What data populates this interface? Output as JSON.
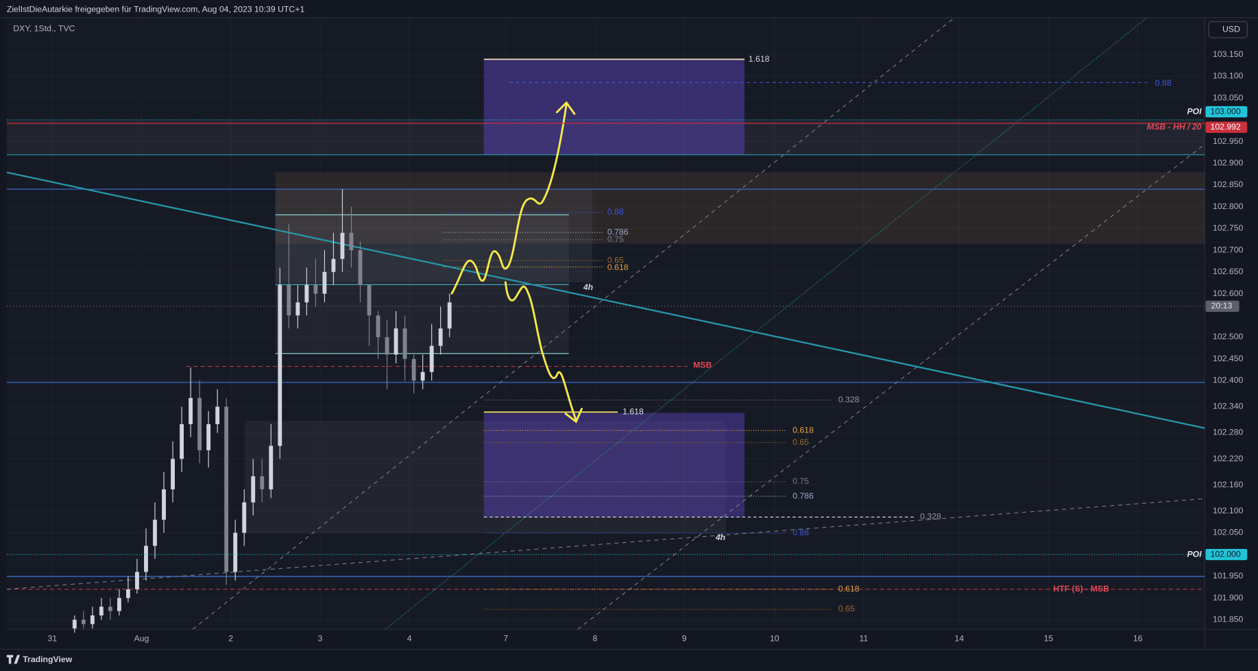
{
  "header": {
    "title": "ZielIstDieAutarkie freigegeben für TradingView.com, Aug 04, 2023 10:39 UTC+1",
    "symbol": "DXY, 1Std., TVC",
    "currency": "USD",
    "logo": "TradingView"
  },
  "chart_data": {
    "type": "candlestick",
    "x": [
      0.25,
      0.35,
      0.45,
      0.55,
      0.65,
      0.75,
      0.85,
      0.95,
      1.05,
      1.15,
      1.25,
      1.35,
      1.45,
      1.55,
      1.65,
      1.75,
      1.85,
      1.95,
      2.05,
      2.15,
      2.25,
      2.35,
      2.45,
      2.55,
      2.65,
      2.75,
      2.85,
      2.95,
      3.05,
      3.15,
      3.25,
      3.35,
      3.45,
      3.55,
      3.65,
      3.75,
      3.85,
      3.95,
      4.05,
      4.15,
      4.25,
      4.35,
      4.45
    ],
    "open": [
      101.83,
      101.85,
      101.84,
      101.86,
      101.88,
      101.87,
      101.9,
      101.92,
      101.96,
      102.02,
      102.08,
      102.15,
      102.22,
      102.3,
      102.36,
      102.24,
      102.3,
      102.34,
      101.96,
      102.05,
      102.12,
      102.18,
      102.15,
      102.25,
      102.62,
      102.55,
      102.58,
      102.62,
      102.6,
      102.65,
      102.68,
      102.74,
      102.7,
      102.62,
      102.55,
      102.5,
      102.46,
      102.52,
      102.45,
      102.4,
      102.42,
      102.48,
      102.52
    ],
    "high": [
      101.86,
      101.87,
      101.88,
      101.9,
      101.9,
      101.92,
      101.95,
      101.99,
      102.06,
      102.12,
      102.19,
      102.26,
      102.34,
      102.43,
      102.4,
      102.33,
      102.38,
      102.36,
      102.08,
      102.15,
      102.22,
      102.22,
      102.3,
      102.66,
      102.76,
      102.62,
      102.66,
      102.68,
      102.7,
      102.74,
      102.84,
      102.8,
      102.72,
      102.62,
      102.56,
      102.54,
      102.56,
      102.55,
      102.46,
      102.46,
      102.53,
      102.57,
      102.6
    ],
    "low": [
      101.82,
      101.83,
      101.83,
      101.85,
      101.85,
      101.86,
      101.89,
      101.91,
      101.94,
      101.99,
      102.05,
      102.12,
      102.19,
      102.27,
      102.21,
      102.2,
      102.28,
      101.93,
      101.94,
      102.02,
      102.09,
      102.12,
      102.13,
      102.22,
      102.52,
      102.52,
      102.55,
      102.57,
      102.58,
      102.62,
      102.65,
      102.66,
      102.58,
      102.48,
      102.45,
      102.38,
      102.44,
      102.4,
      102.37,
      102.38,
      102.4,
      102.46,
      102.5
    ],
    "close": [
      101.85,
      101.84,
      101.86,
      101.88,
      101.87,
      101.9,
      101.92,
      101.96,
      102.02,
      102.08,
      102.15,
      102.22,
      102.3,
      102.36,
      102.24,
      102.3,
      102.34,
      101.96,
      102.05,
      102.12,
      102.18,
      102.15,
      102.25,
      102.62,
      102.55,
      102.58,
      102.62,
      102.6,
      102.65,
      102.68,
      102.74,
      102.7,
      102.62,
      102.55,
      102.5,
      102.46,
      102.52,
      102.45,
      102.4,
      102.42,
      102.48,
      102.52,
      102.58
    ],
    "up_color": "#d1d4dc",
    "down_color": "#80838f",
    "xlim": [
      -0.51,
      12.91
    ],
    "ylim": [
      101.828,
      103.235
    ],
    "xticks": [
      {
        "value": 0,
        "label": "31"
      },
      {
        "value": 1,
        "label": "Aug"
      },
      {
        "value": 2,
        "label": "2"
      },
      {
        "value": 3,
        "label": "3"
      },
      {
        "value": 4,
        "label": "4"
      },
      {
        "value": 5.08,
        "label": "7"
      },
      {
        "value": 6.08,
        "label": "8"
      },
      {
        "value": 7.08,
        "label": "9"
      },
      {
        "value": 8.09,
        "label": "10"
      },
      {
        "value": 9.09,
        "label": "11"
      },
      {
        "value": 10.16,
        "label": "14"
      },
      {
        "value": 11.16,
        "label": "15"
      },
      {
        "value": 12.16,
        "label": "16"
      }
    ],
    "yticks": [
      {
        "value": 103.15,
        "label": "103.150"
      },
      {
        "value": 103.1,
        "label": "103.100"
      },
      {
        "value": 103.05,
        "label": "103.050"
      },
      {
        "value": 102.95,
        "label": "102.950"
      },
      {
        "value": 102.9,
        "label": "102.900"
      },
      {
        "value": 102.85,
        "label": "102.850"
      },
      {
        "value": 102.8,
        "label": "102.800"
      },
      {
        "value": 102.75,
        "label": "102.750"
      },
      {
        "value": 102.7,
        "label": "102.700"
      },
      {
        "value": 102.65,
        "label": "102.650"
      },
      {
        "value": 102.6,
        "label": "102.600"
      },
      {
        "value": 102.5,
        "label": "102.500"
      },
      {
        "value": 102.45,
        "label": "102.450"
      },
      {
        "value": 102.4,
        "label": "102.400"
      },
      {
        "value": 102.34,
        "label": "102.340"
      },
      {
        "value": 102.28,
        "label": "102.280"
      },
      {
        "value": 102.22,
        "label": "102.220"
      },
      {
        "value": 102.16,
        "label": "102.160"
      },
      {
        "value": 102.1,
        "label": "102.100"
      },
      {
        "value": 102.05,
        "label": "102.050"
      },
      {
        "value": 101.95,
        "label": "101.950"
      },
      {
        "value": 101.9,
        "label": "101.900"
      },
      {
        "value": 101.85,
        "label": "101.850"
      }
    ],
    "grid": true,
    "price_lines": [
      {
        "value": 103.0,
        "label": "103.000",
        "name": "POI",
        "color": "#22c3d8"
      },
      {
        "value": 102.992,
        "label": "102.992",
        "name": "MSB - HH / 20",
        "color": "#c9313c"
      },
      {
        "value": 102.0,
        "label": "102.000",
        "name": "POI",
        "color": "#22c3d8"
      }
    ],
    "countdown": "20:13",
    "annotations": [
      "1.618",
      "0.88",
      "0.88",
      "0.786",
      "0.75",
      "0.65",
      "0.618",
      "4h",
      "MSB",
      "0.328",
      "1.618",
      "0.618",
      "0.65",
      "0.75",
      "0.786",
      "0.328",
      "0.88",
      "4h",
      "HTF (S) - MSB",
      "0.618",
      "0.65"
    ]
  }
}
